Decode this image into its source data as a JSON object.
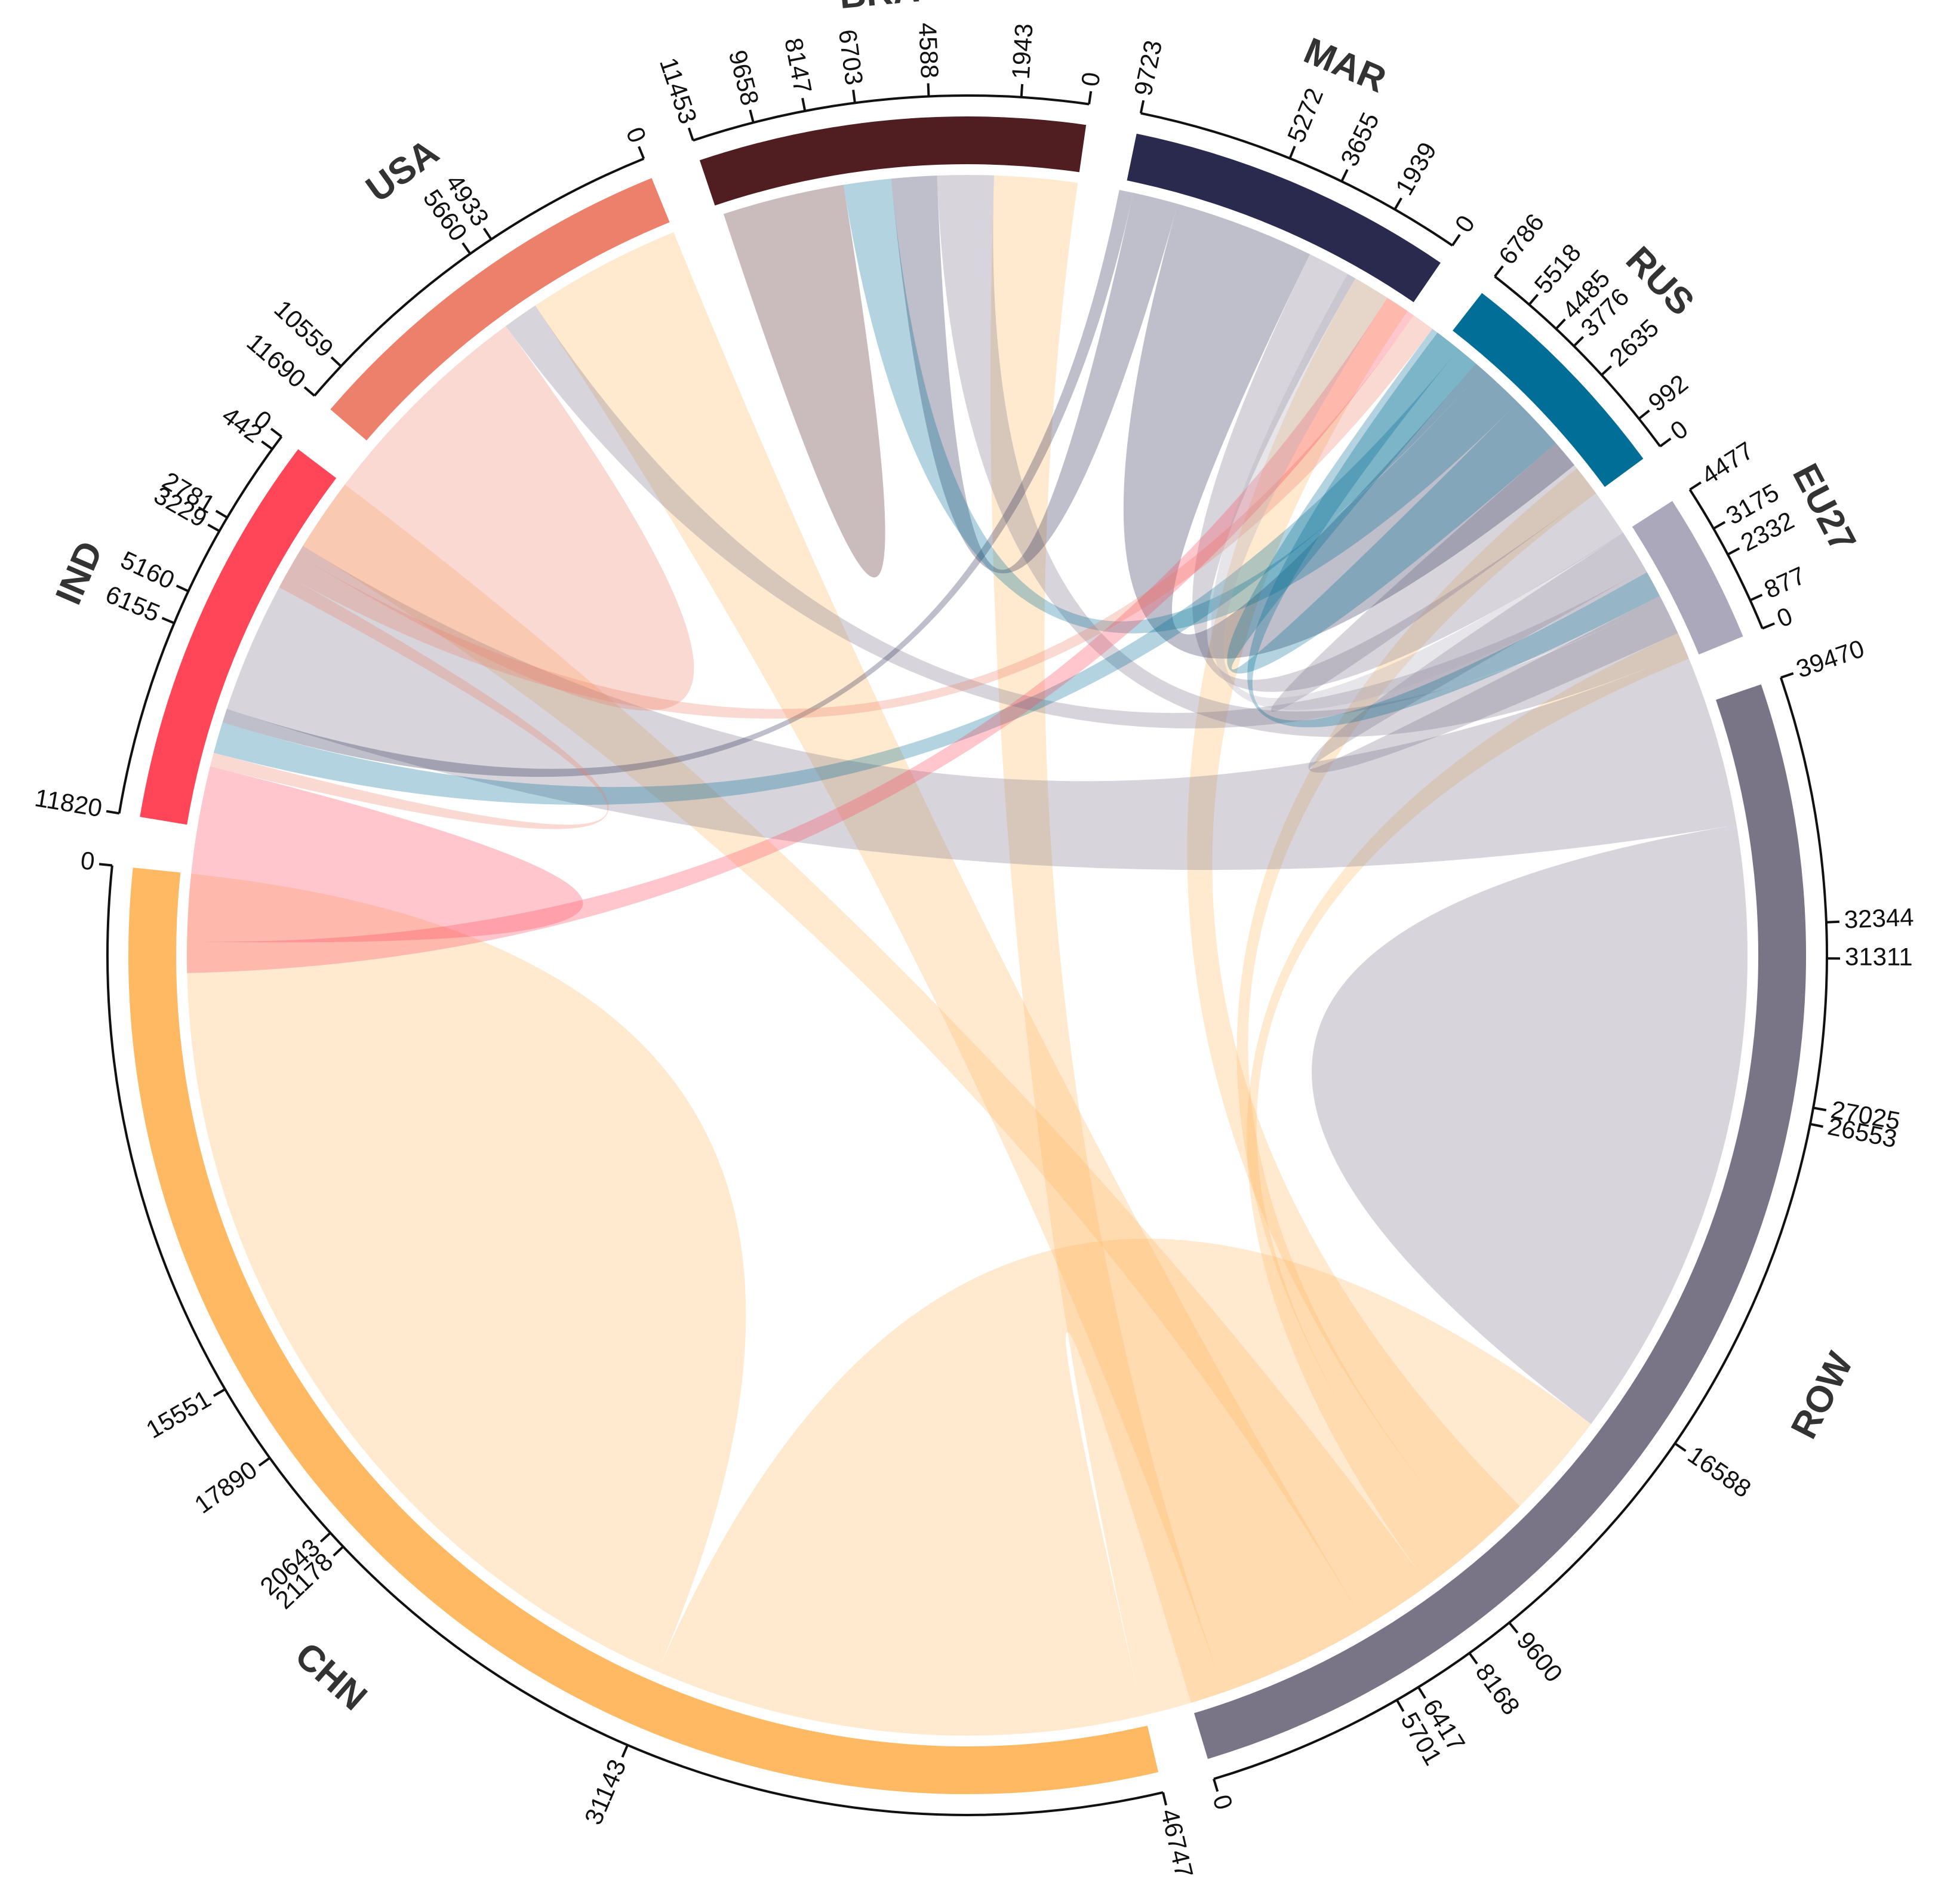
{
  "chart_data": {
    "type": "chord",
    "sectors": [
      {
        "name": "CHN",
        "total": 46747,
        "color": "#FEB962",
        "ticks": [
          0,
          15551,
          17890,
          20643,
          21178,
          31143,
          46747
        ]
      },
      {
        "name": "ROW",
        "total": 39470,
        "color": "#797587",
        "ticks": [
          0,
          5701,
          6417,
          8168,
          9600,
          16588,
          26553,
          27025,
          31311,
          32344,
          39470
        ]
      },
      {
        "name": "EU27",
        "total": 4477,
        "color": "#ACA8BB",
        "ticks": [
          0,
          877,
          2332,
          3175,
          4477
        ]
      },
      {
        "name": "RUS",
        "total": 6786,
        "color": "#006E96",
        "ticks": [
          0,
          992,
          2635,
          3776,
          4485,
          5518,
          6786
        ]
      },
      {
        "name": "MAR",
        "total": 9723,
        "color": "#292A4E",
        "ticks": [
          0,
          1939,
          3655,
          5272,
          9723
        ]
      },
      {
        "name": "BRA",
        "total": 11453,
        "color": "#501E20",
        "ticks": [
          0,
          1943,
          4588,
          6703,
          8147,
          9658,
          11453
        ]
      },
      {
        "name": "USA",
        "total": 11690,
        "color": "#EC806A",
        "ticks": [
          0,
          4933,
          5660,
          10559,
          11690
        ]
      },
      {
        "name": "IND",
        "total": 11820,
        "color": "#FF4658",
        "ticks": [
          0,
          442,
          2781,
          3229,
          5160,
          6155,
          11820
        ]
      }
    ],
    "flows": [
      {
        "from": "CHN",
        "to": "CHN",
        "value": 15551
      },
      {
        "from": "CHN",
        "to": "ROW",
        "value": 15592
      },
      {
        "from": "CHN",
        "to": "BRA",
        "value": 2645
      },
      {
        "from": "CHN",
        "to": "USA",
        "value": 4933
      },
      {
        "from": "CHN",
        "to": "IND",
        "value": 2339
      },
      {
        "from": "CHN",
        "to": "EU27",
        "value": 877
      },
      {
        "from": "CHN",
        "to": "RUS",
        "value": 992
      },
      {
        "from": "CHN",
        "to": "MAR",
        "value": 1939
      },
      {
        "from": "ROW",
        "to": "ROW",
        "value": 9965
      },
      {
        "from": "ROW",
        "to": "IND",
        "value": 5665
      },
      {
        "from": "ROW",
        "to": "BRA",
        "value": 1795
      },
      {
        "from": "ROW",
        "to": "USA",
        "value": 1131
      },
      {
        "from": "ROW",
        "to": "EU27",
        "value": 1302
      },
      {
        "from": "ROW",
        "to": "MAR",
        "value": 1617
      },
      {
        "from": "ROW",
        "to": "RUS",
        "value": 1033
      },
      {
        "from": "MAR",
        "to": "ROW",
        "value": 4451
      },
      {
        "from": "MAR",
        "to": "BRA",
        "value": 1444
      },
      {
        "from": "MAR",
        "to": "IND",
        "value": 448
      },
      {
        "from": "RUS",
        "to": "ROW",
        "value": 1751
      },
      {
        "from": "RUS",
        "to": "BRA",
        "value": 1511
      },
      {
        "from": "RUS",
        "to": "IND",
        "value": 995
      },
      {
        "from": "RUS",
        "to": "EU27",
        "value": 843
      },
      {
        "from": "USA",
        "to": "USA",
        "value": 4899
      },
      {
        "from": "USA",
        "to": "ROW",
        "value": 727
      },
      {
        "from": "USA",
        "to": "IND",
        "value": 442
      },
      {
        "from": "BRA",
        "to": "BRA",
        "value": 1943
      },
      {
        "from": "IND",
        "to": "IND",
        "value": 2781
      },
      {
        "from": "IND",
        "to": "ROW",
        "value": 996
      },
      {
        "from": "EU27",
        "to": "ROW",
        "value": 1455
      }
    ]
  }
}
